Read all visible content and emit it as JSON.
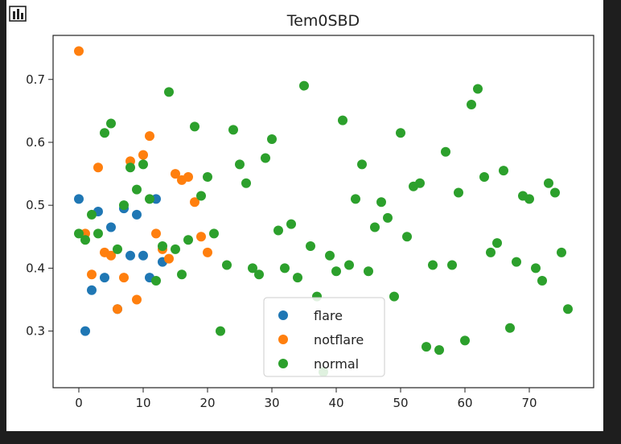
{
  "chart_data": {
    "type": "scatter",
    "title": "Tem0SBD",
    "xlabel": "",
    "ylabel": "",
    "xlim": [
      -4,
      80
    ],
    "ylim": [
      0.21,
      0.77
    ],
    "xticks": [
      0,
      10,
      20,
      30,
      40,
      50,
      60,
      70
    ],
    "yticks": [
      0.3,
      0.4,
      0.5,
      0.6,
      0.7
    ],
    "grid": false,
    "legend": {
      "position": "lower-center"
    },
    "series": [
      {
        "name": "flare",
        "color": "#1f77b4",
        "points": [
          [
            0,
            0.51
          ],
          [
            1,
            0.3
          ],
          [
            2,
            0.365
          ],
          [
            3,
            0.49
          ],
          [
            4,
            0.385
          ],
          [
            5,
            0.465
          ],
          [
            6,
            0.335
          ],
          [
            7,
            0.495
          ],
          [
            8,
            0.42
          ],
          [
            9,
            0.485
          ],
          [
            10,
            0.42
          ],
          [
            11,
            0.385
          ],
          [
            12,
            0.51
          ],
          [
            13,
            0.41
          ]
        ]
      },
      {
        "name": "notflare",
        "color": "#ff7f0e",
        "points": [
          [
            0,
            0.745
          ],
          [
            1,
            0.455
          ],
          [
            2,
            0.39
          ],
          [
            3,
            0.56
          ],
          [
            4,
            0.425
          ],
          [
            5,
            0.42
          ],
          [
            6,
            0.335
          ],
          [
            7,
            0.385
          ],
          [
            8,
            0.57
          ],
          [
            9,
            0.35
          ],
          [
            10,
            0.58
          ],
          [
            11,
            0.61
          ],
          [
            12,
            0.455
          ],
          [
            13,
            0.43
          ],
          [
            14,
            0.415
          ],
          [
            15,
            0.55
          ],
          [
            16,
            0.54
          ],
          [
            17,
            0.545
          ],
          [
            18,
            0.505
          ],
          [
            19,
            0.45
          ],
          [
            20,
            0.425
          ]
        ]
      },
      {
        "name": "normal",
        "color": "#2ca02c",
        "points": [
          [
            0,
            0.455
          ],
          [
            1,
            0.445
          ],
          [
            2,
            0.485
          ],
          [
            3,
            0.455
          ],
          [
            4,
            0.615
          ],
          [
            5,
            0.63
          ],
          [
            6,
            0.43
          ],
          [
            7,
            0.5
          ],
          [
            8,
            0.56
          ],
          [
            9,
            0.525
          ],
          [
            10,
            0.565
          ],
          [
            11,
            0.51
          ],
          [
            12,
            0.38
          ],
          [
            13,
            0.435
          ],
          [
            14,
            0.68
          ],
          [
            15,
            0.43
          ],
          [
            16,
            0.39
          ],
          [
            17,
            0.445
          ],
          [
            18,
            0.625
          ],
          [
            19,
            0.515
          ],
          [
            20,
            0.545
          ],
          [
            21,
            0.455
          ],
          [
            22,
            0.3
          ],
          [
            23,
            0.405
          ],
          [
            24,
            0.62
          ],
          [
            25,
            0.565
          ],
          [
            26,
            0.535
          ],
          [
            27,
            0.4
          ],
          [
            28,
            0.39
          ],
          [
            29,
            0.575
          ],
          [
            30,
            0.605
          ],
          [
            31,
            0.46
          ],
          [
            32,
            0.4
          ],
          [
            33,
            0.47
          ],
          [
            34,
            0.385
          ],
          [
            35,
            0.69
          ],
          [
            36,
            0.435
          ],
          [
            37,
            0.355
          ],
          [
            38,
            0.235
          ],
          [
            39,
            0.42
          ],
          [
            40,
            0.395
          ],
          [
            41,
            0.635
          ],
          [
            42,
            0.405
          ],
          [
            43,
            0.51
          ],
          [
            44,
            0.565
          ],
          [
            45,
            0.395
          ],
          [
            46,
            0.465
          ],
          [
            47,
            0.505
          ],
          [
            48,
            0.48
          ],
          [
            49,
            0.355
          ],
          [
            50,
            0.615
          ],
          [
            51,
            0.45
          ],
          [
            52,
            0.53
          ],
          [
            53,
            0.535
          ],
          [
            54,
            0.275
          ],
          [
            55,
            0.405
          ],
          [
            56,
            0.27
          ],
          [
            57,
            0.585
          ],
          [
            58,
            0.405
          ],
          [
            59,
            0.52
          ],
          [
            60,
            0.285
          ],
          [
            61,
            0.66
          ],
          [
            62,
            0.685
          ],
          [
            63,
            0.545
          ],
          [
            64,
            0.425
          ],
          [
            65,
            0.44
          ],
          [
            66,
            0.555
          ],
          [
            67,
            0.305
          ],
          [
            68,
            0.41
          ],
          [
            69,
            0.515
          ],
          [
            70,
            0.51
          ],
          [
            71,
            0.4
          ],
          [
            72,
            0.38
          ],
          [
            73,
            0.535
          ],
          [
            74,
            0.52
          ],
          [
            75,
            0.425
          ],
          [
            76,
            0.335
          ]
        ]
      }
    ]
  }
}
